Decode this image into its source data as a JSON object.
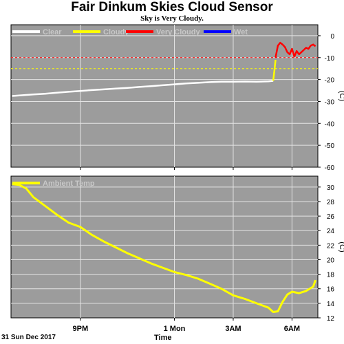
{
  "chart_data": [
    {
      "type": "line",
      "title": "Fair Dinkum Skies Cloud Sensor",
      "subtitle": "Sky is Very Cloudy.",
      "ylabel": "(C)",
      "xlabel": "Time",
      "date_label": "31 Sun Dec 2017",
      "ylim": [
        -60,
        5
      ],
      "y_ticks": [
        0,
        -10,
        -20,
        -30,
        -40,
        -50,
        -60
      ],
      "x_ticks": [
        "9PM",
        "1 Mon",
        "3AM",
        "6AM"
      ],
      "x_tick_hours": [
        21,
        25,
        27.5,
        30
      ],
      "xlim_hours": [
        18.05,
        31.1
      ],
      "grid": true,
      "legend": [
        {
          "name": "Clear",
          "color": "#ffffff"
        },
        {
          "name": "Cloudy",
          "color": "#ffff00"
        },
        {
          "name": "Very Cloudy",
          "color": "#ff0000"
        },
        {
          "name": "Wet",
          "color": "#0000ff"
        }
      ],
      "thresholds": [
        {
          "value": -10,
          "color": "#ff0000"
        },
        {
          "value": -15,
          "color": "#ffff00"
        }
      ],
      "series": [
        {
          "name": "Clear",
          "color": "#ffffff",
          "x": [
            18.1,
            18.5,
            19.0,
            19.5,
            20.0,
            20.5,
            21.0,
            21.5,
            22.0,
            22.5,
            23.0,
            23.5,
            24.0,
            24.5,
            25.0,
            25.5,
            26.0,
            26.5,
            27.0,
            27.5,
            28.0,
            28.5,
            29.0,
            29.2
          ],
          "y": [
            -27.5,
            -27.2,
            -26.8,
            -26.5,
            -26.0,
            -25.6,
            -25.2,
            -24.8,
            -24.5,
            -24.1,
            -23.8,
            -23.4,
            -23.0,
            -22.6,
            -22.2,
            -21.8,
            -21.5,
            -21.2,
            -21.0,
            -21.0,
            -20.9,
            -21.0,
            -20.8,
            -20.6
          ]
        },
        {
          "name": "Cloudy",
          "color": "#ffff00",
          "x": [
            29.2,
            29.25,
            29.3
          ],
          "y": [
            -20.6,
            -16.0,
            -11.0
          ]
        },
        {
          "name": "Very Cloudy",
          "color": "#ff0000",
          "x": [
            29.3,
            29.4,
            29.5,
            29.6,
            29.7,
            29.8,
            29.9,
            30.0,
            30.1,
            30.2,
            30.3,
            30.4,
            30.5,
            30.6,
            30.7,
            30.8,
            30.9,
            31.0
          ],
          "y": [
            -10.0,
            -4.5,
            -3.2,
            -4.0,
            -5.2,
            -7.5,
            -8.5,
            -6.0,
            -9.5,
            -7.0,
            -8.5,
            -7.5,
            -6.5,
            -5.5,
            -6.0,
            -4.5,
            -4.0,
            -4.8
          ]
        }
      ]
    },
    {
      "type": "line",
      "ylabel": "(C)",
      "ylim": [
        12,
        31.5
      ],
      "y_ticks": [
        30,
        28,
        26,
        24,
        22,
        20,
        18,
        16,
        14,
        12
      ],
      "x_ticks": [
        "9PM",
        "1 Mon",
        "3AM",
        "6AM"
      ],
      "grid": true,
      "legend": [
        {
          "name": "Ambient Temp",
          "color": "#ffff00"
        }
      ],
      "series": [
        {
          "name": "Ambient Temp",
          "color": "#ffff00",
          "x": [
            18.1,
            18.4,
            18.7,
            19.0,
            19.5,
            20.0,
            20.5,
            21.0,
            21.5,
            22.0,
            22.5,
            23.0,
            23.5,
            24.0,
            24.5,
            25.0,
            25.5,
            26.0,
            26.5,
            27.0,
            27.5,
            28.0,
            28.5,
            29.0,
            29.2,
            29.4,
            29.6,
            29.8,
            30.0,
            30.3,
            30.6,
            30.9,
            31.0
          ],
          "y": [
            30.4,
            30.3,
            29.8,
            28.6,
            27.4,
            26.2,
            25.1,
            24.5,
            23.4,
            22.5,
            21.7,
            20.9,
            20.2,
            19.5,
            18.9,
            18.3,
            17.9,
            17.4,
            16.7,
            16.0,
            15.1,
            14.6,
            14.0,
            13.4,
            12.8,
            12.9,
            14.2,
            15.2,
            15.6,
            15.4,
            15.7,
            16.3,
            17.2
          ]
        }
      ]
    }
  ]
}
